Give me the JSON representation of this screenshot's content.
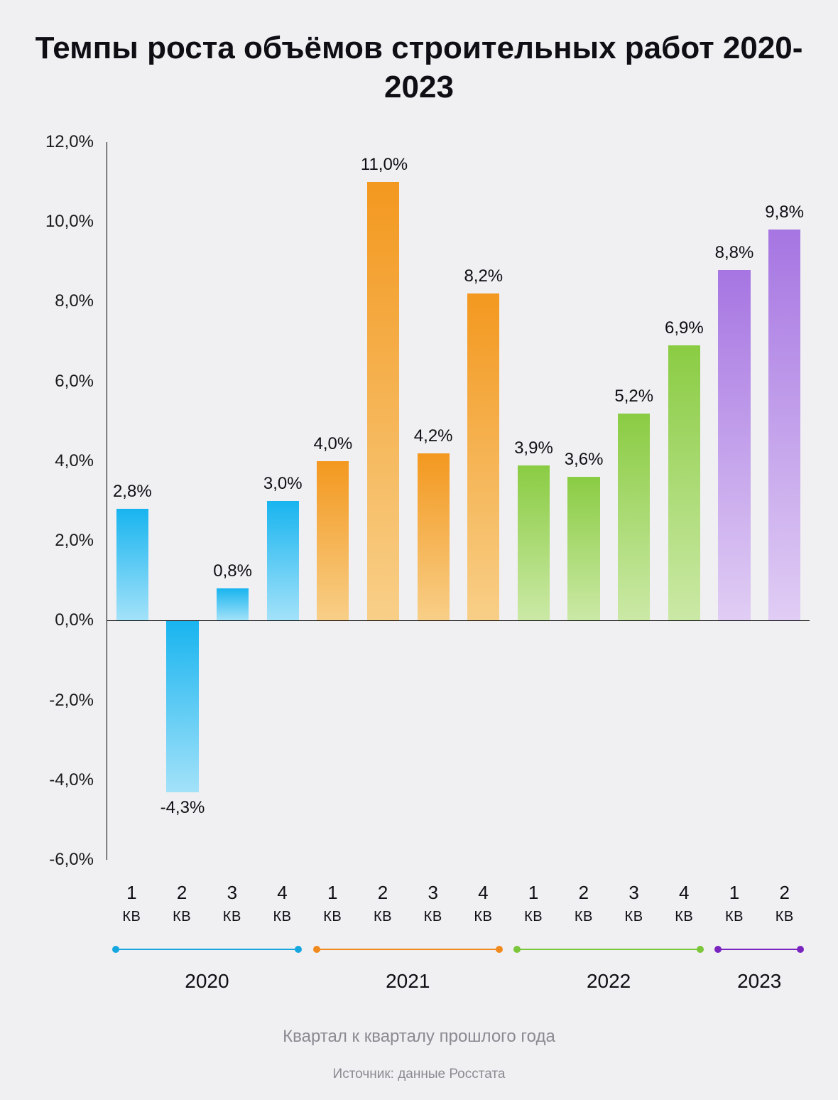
{
  "title": "Темпы роста объёмов строительных работ 2020-2023",
  "subtitle": "Квартал к кварталу прошлого года",
  "source": "Источник: данные Росстата",
  "chart": {
    "type": "bar",
    "y_axis": {
      "min": -6.0,
      "max": 12.0,
      "step": 2.0,
      "tick_labels": [
        "12,0%",
        "10,0%",
        "8,0%",
        "6,0%",
        "4,0%",
        "2,0%",
        "0,0%",
        "-2,0%",
        "-4,0%",
        "-6,0%"
      ],
      "tick_values": [
        12,
        10,
        8,
        6,
        4,
        2,
        0,
        -2,
        -4,
        -6
      ],
      "label_fontsize": 24,
      "label_color": "#1a1a1a",
      "axis_color": "#000000"
    },
    "zero_line_color": "#000000",
    "background_color": "#f0f0f2",
    "bar_width_ratio": 0.64,
    "data_label_fontsize": 24,
    "data_label_color": "#0e0e14",
    "x_axis": {
      "quarter_fontsize": 26,
      "kv_fontsize": 20,
      "kv_text": "КВ"
    },
    "years": [
      {
        "year": "2020",
        "band_color": "#16a7df",
        "bar_gradient": [
          "#18b4ef",
          "#a3e2f9"
        ],
        "quarters": [
          {
            "q": "1",
            "value": 2.8,
            "label": "2,8%"
          },
          {
            "q": "2",
            "value": -4.3,
            "label": "-4,3%"
          },
          {
            "q": "3",
            "value": 0.8,
            "label": "0,8%"
          },
          {
            "q": "4",
            "value": 3.0,
            "label": "3,0%"
          }
        ]
      },
      {
        "year": "2021",
        "band_color": "#f08a1f",
        "bar_gradient": [
          "#f3981f",
          "#f8cf88"
        ],
        "quarters": [
          {
            "q": "1",
            "value": 4.0,
            "label": "4,0%"
          },
          {
            "q": "2",
            "value": 11.0,
            "label": "11,0%"
          },
          {
            "q": "3",
            "value": 4.2,
            "label": "4,2%"
          },
          {
            "q": "4",
            "value": 8.2,
            "label": "8,2%"
          }
        ]
      },
      {
        "year": "2022",
        "band_color": "#7bc63a",
        "bar_gradient": [
          "#8acc43",
          "#cbe9a6"
        ],
        "quarters": [
          {
            "q": "1",
            "value": 3.9,
            "label": "3,9%"
          },
          {
            "q": "2",
            "value": 3.6,
            "label": "3,6%"
          },
          {
            "q": "3",
            "value": 5.2,
            "label": "5,2%"
          },
          {
            "q": "4",
            "value": 6.9,
            "label": "6,9%"
          }
        ]
      },
      {
        "year": "2023",
        "band_color": "#7a24c0",
        "bar_gradient": [
          "#a675e2",
          "#e0cdf4"
        ],
        "quarters": [
          {
            "q": "1",
            "value": 8.8,
            "label": "8,8%"
          },
          {
            "q": "2",
            "value": 9.8,
            "label": "9,8%"
          }
        ]
      }
    ]
  }
}
